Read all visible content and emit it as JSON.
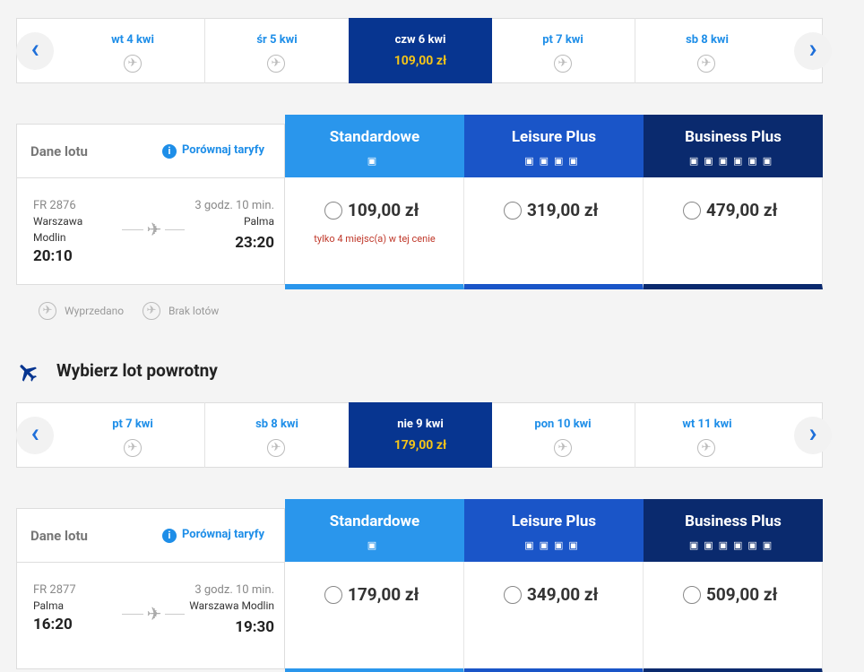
{
  "outbound": {
    "dates": [
      {
        "label": "wt 4 kwi"
      },
      {
        "label": "śr 5 kwi"
      },
      {
        "label": "czw 6 kwi",
        "price": "109,00 zł"
      },
      {
        "label": "pt 7 kwi"
      },
      {
        "label": "sb 8 kwi"
      }
    ],
    "details_label": "Dane lotu",
    "compare_label": "Porównaj taryfy",
    "fares": [
      {
        "name": "Standardowe",
        "price": "109,00 zł",
        "note": "tylko 4 miejsc(a) w tej cenie"
      },
      {
        "name": "Leisure Plus",
        "price": "319,00 zł"
      },
      {
        "name": "Business Plus",
        "price": "479,00 zł"
      }
    ],
    "flight": {
      "number": "FR 2876",
      "from_lines": [
        "Warszawa",
        "Modlin"
      ],
      "departure": "20:10",
      "duration": "3 godz. 10 min.",
      "to_lines": [
        "Palma"
      ],
      "arrival": "23:20"
    },
    "legend": [
      "Wyprzedano",
      "Brak lotów"
    ]
  },
  "return_title": "Wybierz lot powrotny",
  "inbound": {
    "dates": [
      {
        "label": "pt 7 kwi"
      },
      {
        "label": "sb 8 kwi"
      },
      {
        "label": "nie 9 kwi",
        "price": "179,00 zł"
      },
      {
        "label": "pon 10 kwi"
      },
      {
        "label": "wt 11 kwi"
      }
    ],
    "details_label": "Dane lotu",
    "compare_label": "Porównaj taryfy",
    "fares": [
      {
        "name": "Standardowe",
        "price": "179,00 zł"
      },
      {
        "name": "Leisure Plus",
        "price": "349,00 zł"
      },
      {
        "name": "Business Plus",
        "price": "509,00 zł"
      }
    ],
    "flight": {
      "number": "FR 2877",
      "from_lines": [
        "Palma"
      ],
      "departure": "16:20",
      "duration": "3 godz. 10 min.",
      "to_lines": [
        "Warszawa Modlin"
      ],
      "arrival": "19:30"
    }
  }
}
